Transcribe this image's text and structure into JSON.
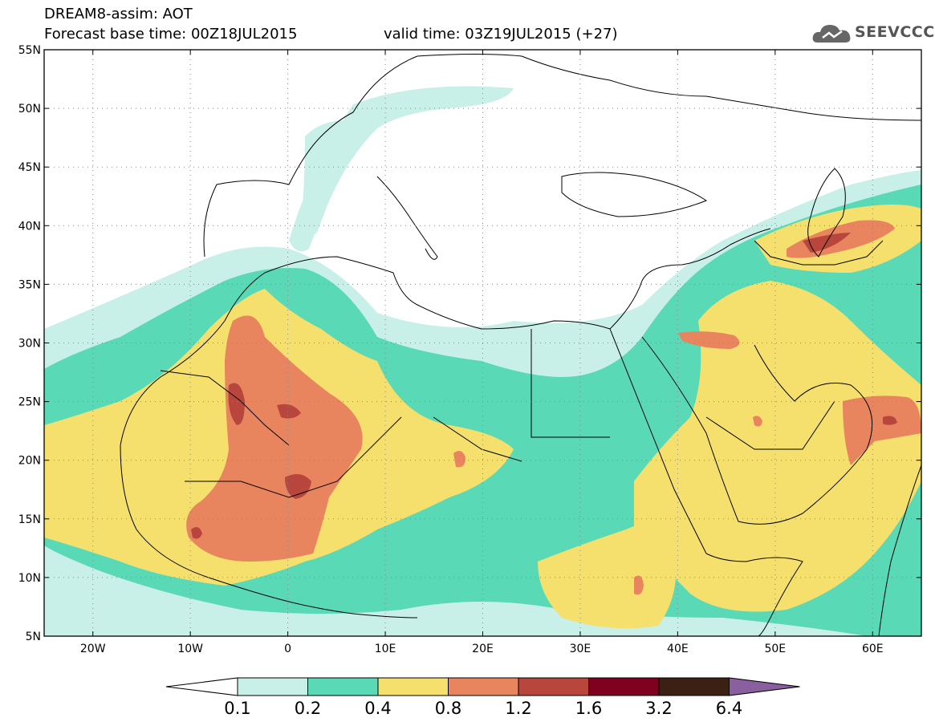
{
  "header": {
    "title": "DREAM8-assim: AOT",
    "base_time": "Forecast base time: 00Z18JUL2015",
    "valid_time": "valid time: 03Z19JUL2015 (+27)",
    "logo_text": "SEEVCCC"
  },
  "map": {
    "lon_range": [
      -25,
      65
    ],
    "lat_range": [
      5,
      55
    ],
    "lat_ticks": [
      {
        "value": 55,
        "label": "55N"
      },
      {
        "value": 50,
        "label": "50N"
      },
      {
        "value": 45,
        "label": "45N"
      },
      {
        "value": 40,
        "label": "40N"
      },
      {
        "value": 35,
        "label": "35N"
      },
      {
        "value": 30,
        "label": "30N"
      },
      {
        "value": 25,
        "label": "25N"
      },
      {
        "value": 20,
        "label": "20N"
      },
      {
        "value": 15,
        "label": "15N"
      },
      {
        "value": 10,
        "label": "10N"
      },
      {
        "value": 5,
        "label": "5N"
      }
    ],
    "lon_ticks": [
      {
        "value": -20,
        "label": "20W"
      },
      {
        "value": -10,
        "label": "10W"
      },
      {
        "value": 0,
        "label": "0"
      },
      {
        "value": 10,
        "label": "10E"
      },
      {
        "value": 20,
        "label": "20E"
      },
      {
        "value": 30,
        "label": "30E"
      },
      {
        "value": 40,
        "label": "40E"
      },
      {
        "value": 50,
        "label": "50E"
      },
      {
        "value": 60,
        "label": "60E"
      }
    ]
  },
  "colorbar": {
    "colors": [
      "#c8f0e8",
      "#5ad9b6",
      "#f5e06e",
      "#e8845e",
      "#b8463c",
      "#800020",
      "#3c2014"
    ],
    "under_color": "#ffffff",
    "over_color": "#8a5fa0",
    "labels": [
      "0.1",
      "0.2",
      "0.4",
      "0.8",
      "1.2",
      "1.6",
      "3.2",
      "6.4"
    ]
  }
}
